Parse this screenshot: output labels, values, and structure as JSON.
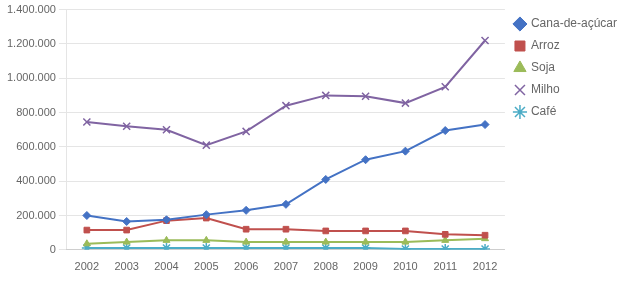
{
  "chart_data": {
    "type": "line",
    "x": [
      2002,
      2003,
      2004,
      2005,
      2006,
      2007,
      2008,
      2009,
      2010,
      2011,
      2012
    ],
    "xlim": [
      2001.5,
      2012.5
    ],
    "xticks": [
      2002,
      2003,
      2004,
      2005,
      2006,
      2007,
      2008,
      2009,
      2010,
      2011,
      2012
    ],
    "ylim": [
      0,
      1400000
    ],
    "yticks": [
      0,
      {
        "value": 200000,
        "label": "200.000"
      },
      {
        "value": 400000,
        "label": "400.000"
      },
      {
        "value": 600000,
        "label": "600.000"
      },
      {
        "value": 800000,
        "label": "800.000"
      },
      {
        "value": 1000000,
        "label": "1.000.000"
      },
      {
        "value": 1200000,
        "label": "1.200.000"
      },
      {
        "value": 1400000,
        "label": "1.400.000"
      }
    ],
    "grid": "y",
    "legend": "right",
    "series": [
      {
        "name": "Cana-de-açúcar",
        "color": "#4472C4",
        "marker": "diamond",
        "values": [
          200000,
          165000,
          175000,
          205000,
          230000,
          265000,
          410000,
          525000,
          575000,
          695000,
          730000
        ]
      },
      {
        "name": "Arroz",
        "color": "#C0504D",
        "marker": "square",
        "values": [
          115000,
          115000,
          170000,
          185000,
          120000,
          120000,
          110000,
          110000,
          110000,
          90000,
          85000
        ]
      },
      {
        "name": "Soja",
        "color": "#9BBB59",
        "marker": "triangle",
        "values": [
          35000,
          45000,
          55000,
          55000,
          45000,
          45000,
          45000,
          45000,
          45000,
          55000,
          65000
        ]
      },
      {
        "name": "Milho",
        "color": "#8064A2",
        "marker": "x",
        "values": [
          745000,
          720000,
          700000,
          610000,
          690000,
          840000,
          900000,
          895000,
          855000,
          950000,
          1220000
        ]
      },
      {
        "name": "Café",
        "color": "#4BACC6",
        "marker": "star",
        "values": [
          10000,
          10000,
          10000,
          10000,
          10000,
          10000,
          10000,
          10000,
          5000,
          5000,
          5000
        ]
      }
    ]
  }
}
